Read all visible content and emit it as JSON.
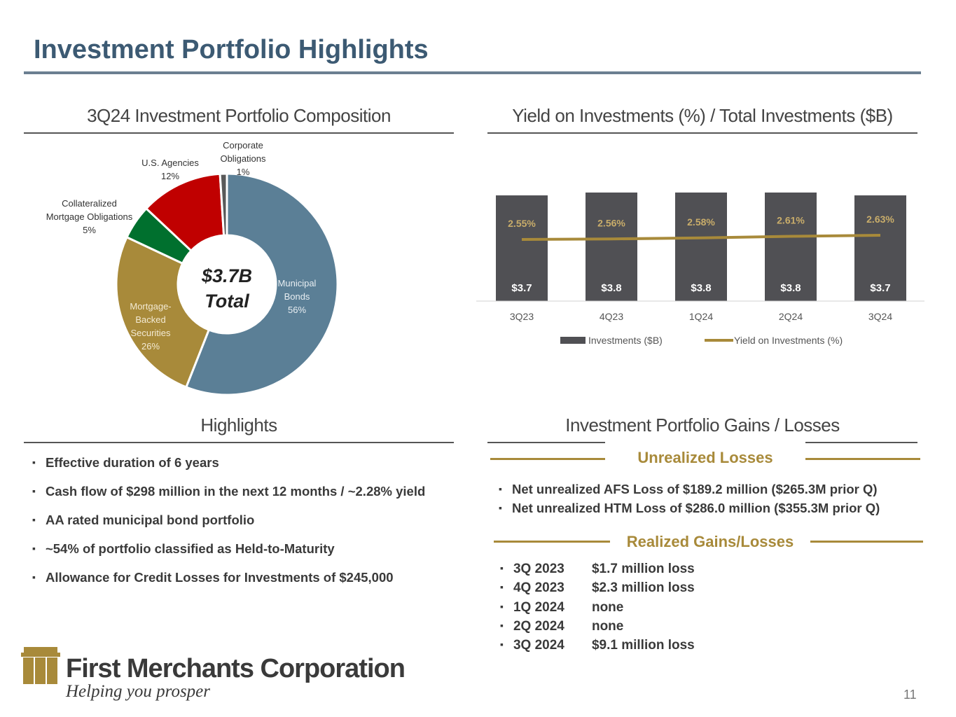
{
  "title": "Investment Portfolio Highlights",
  "page_number": "11",
  "colors": {
    "title": "#3c5a73",
    "gold": "#a88a3a",
    "bar": "#505054"
  },
  "chart_data": [
    {
      "type": "pie",
      "title": "3Q24 Investment Portfolio Composition",
      "center_label": [
        "$3.7B",
        "Total"
      ],
      "slices": [
        {
          "label": "Municipal Bonds",
          "value": 56,
          "color": "#5b7f96"
        },
        {
          "label": "Mortgage-Backed Securities",
          "value": 26,
          "color": "#a88a3a"
        },
        {
          "label": "Collateralized Mortgage Obligations",
          "value": 5,
          "color": "#00702e"
        },
        {
          "label": "U.S. Agencies",
          "value": 12,
          "color": "#c00000"
        },
        {
          "label": "Corporate Obligations",
          "value": 1,
          "color": "#595959"
        }
      ]
    },
    {
      "type": "bar",
      "title": "Yield on Investments (%) / Total Investments ($B)",
      "categories": [
        "3Q23",
        "4Q23",
        "1Q24",
        "2Q24",
        "3Q24"
      ],
      "series": [
        {
          "name": "Investments ($B)",
          "type": "bar",
          "values": [
            3.7,
            3.8,
            3.8,
            3.8,
            3.7
          ],
          "labels": [
            "$3.7",
            "$3.8",
            "$3.8",
            "$3.8",
            "$3.7"
          ],
          "color": "#505054"
        },
        {
          "name": "Yield on Investments (%)",
          "type": "line",
          "values": [
            2.55,
            2.56,
            2.58,
            2.61,
            2.63
          ],
          "labels": [
            "2.55%",
            "2.56%",
            "2.58%",
            "2.61%",
            "2.63%"
          ],
          "color": "#a88a3a"
        }
      ],
      "legend": "bottom"
    }
  ],
  "highlights": {
    "title": "Highlights",
    "items": [
      "Effective duration of 6 years",
      "Cash flow of $298 million in the next 12 months / ~2.28% yield",
      "AA rated municipal bond portfolio",
      "~54% of portfolio classified as Held-to-Maturity",
      "Allowance for Credit Losses for Investments of $245,000"
    ]
  },
  "gains": {
    "title": "Investment Portfolio Gains / Losses",
    "unrealized_title": "Unrealized Losses",
    "unrealized": [
      "Net unrealized AFS Loss of $189.2 million ($265.3M prior Q)",
      "Net unrealized HTM Loss of $286.0 million ($355.3M prior Q)"
    ],
    "realized_title": "Realized Gains/Losses",
    "realized": [
      {
        "q": "3Q 2023",
        "v": "$1.7 million loss"
      },
      {
        "q": "4Q 2023",
        "v": "$2.3 million loss"
      },
      {
        "q": "1Q 2024",
        "v": "none"
      },
      {
        "q": "2Q 2024",
        "v": "none"
      },
      {
        "q": "3Q 2024",
        "v": "$9.1 million loss"
      }
    ]
  },
  "logo": {
    "name": "First Merchants Corporation",
    "tagline": "Helping you prosper"
  }
}
